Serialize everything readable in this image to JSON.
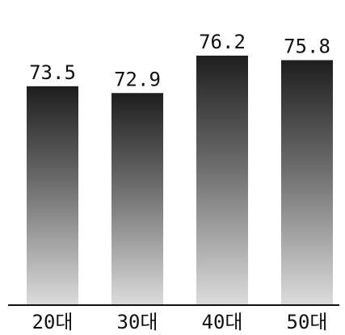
{
  "chart_data": {
    "type": "bar",
    "categories": [
      "20대",
      "30대",
      "40대",
      "50대"
    ],
    "values": [
      73.5,
      72.9,
      76.2,
      75.8
    ],
    "value_labels": [
      "73.5",
      "72.9",
      "76.2",
      "75.8"
    ],
    "title": "",
    "xlabel": "",
    "ylabel": "",
    "ylim": [
      0,
      80
    ],
    "grid": false,
    "legend": "none",
    "colors": {
      "bar_top": "#1e1e1e",
      "bar_bottom": "#dcdcdc",
      "axis": "#111111"
    }
  }
}
